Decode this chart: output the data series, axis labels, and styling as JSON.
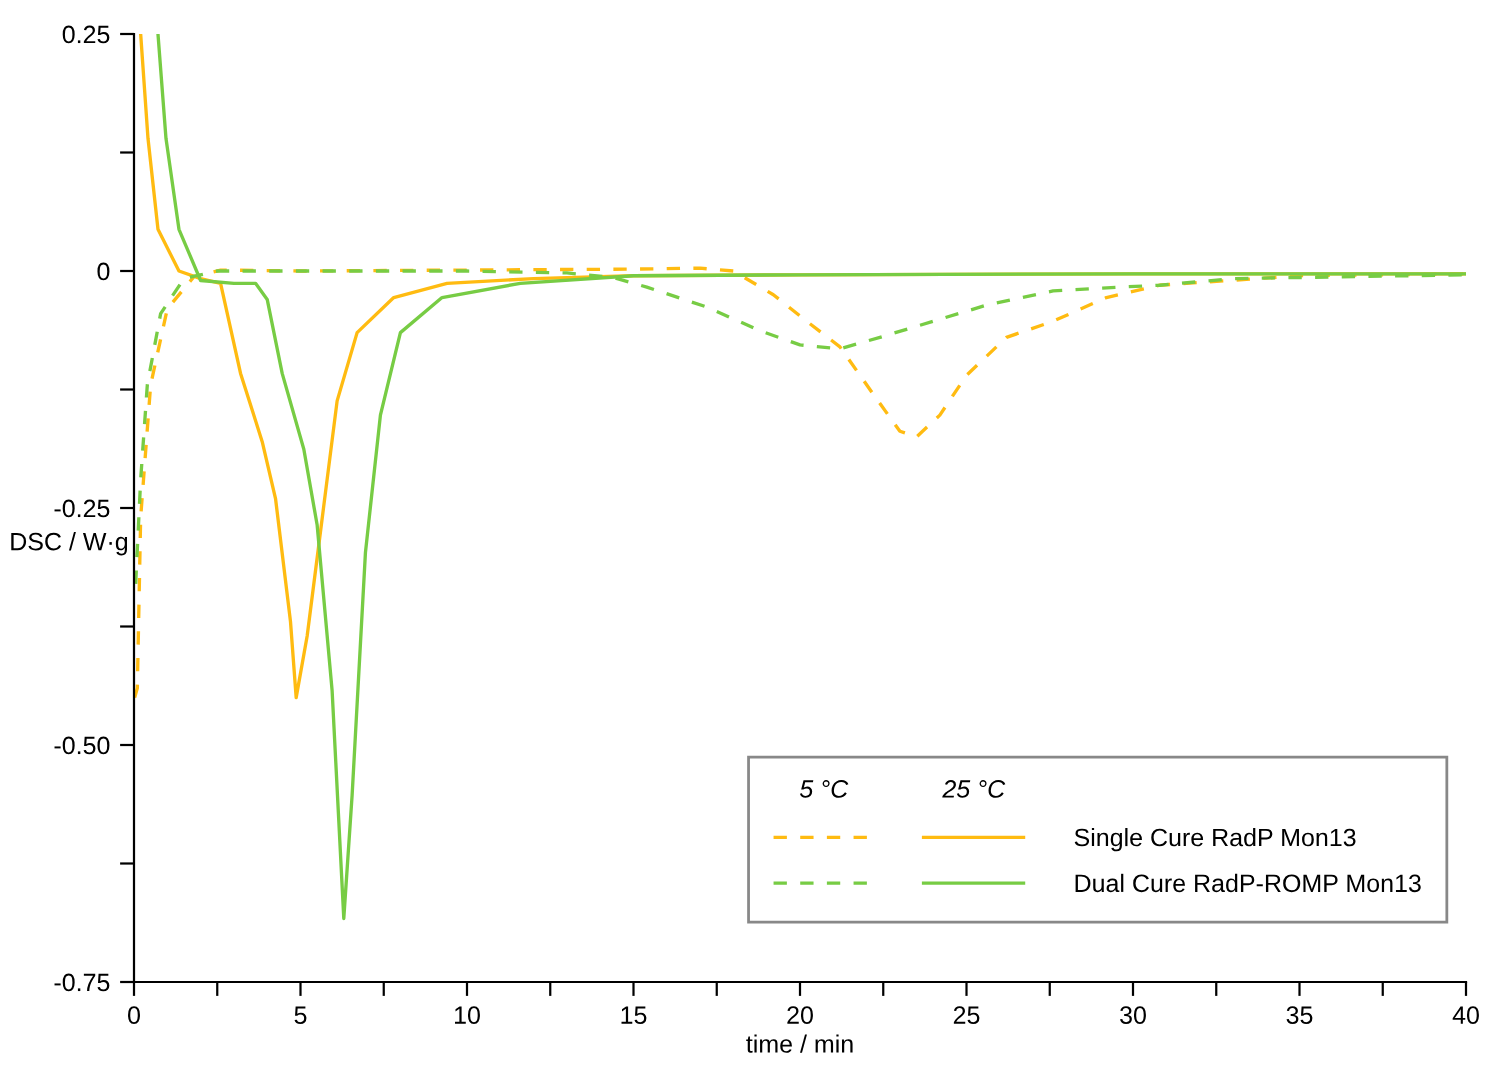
{
  "chart_data": {
    "type": "line",
    "xlabel": "time / min",
    "ylabel": "DSC / W·g",
    "xlim": [
      0,
      40
    ],
    "ylim": [
      -0.75,
      0.25
    ],
    "xticks": [
      0,
      {
        "value": 2.5,
        "label": null
      },
      5,
      {
        "value": 7.5,
        "label": null
      },
      10,
      {
        "value": 12.5,
        "label": null
      },
      15,
      {
        "value": 17.5,
        "label": null
      },
      20,
      {
        "value": 22.5,
        "label": null
      },
      25,
      {
        "value": 27.5,
        "label": null
      },
      30,
      {
        "value": 32.5,
        "label": null
      },
      35,
      {
        "value": 37.5,
        "label": null
      },
      40
    ],
    "yticks": [
      {
        "value": -0.75,
        "label": "-0.75"
      },
      {
        "value": -0.625,
        "label": null
      },
      {
        "value": -0.5,
        "label": "-0.50"
      },
      {
        "value": -0.375,
        "label": null
      },
      {
        "value": -0.25,
        "label": "-0.25"
      },
      {
        "value": -0.125,
        "label": null
      },
      0,
      {
        "value": 0.125,
        "label": null
      },
      0.25
    ],
    "grid": false,
    "legend": "bottom right",
    "marker": "none",
    "annotations": [
      "5 °C",
      "25 °C"
    ],
    "series": [
      {
        "color": "#ffbb11",
        "line_style": "dashed",
        "x": [
          0.02,
          0.1,
          0.2,
          0.5,
          1.0,
          1.8,
          2.6,
          5,
          10,
          15,
          17,
          18,
          19.2,
          20.2,
          21.2,
          22.2,
          23,
          23.5,
          24.2,
          25,
          26.2,
          27.6,
          29.2,
          30.8,
          35,
          40
        ],
        "values": [
          -0.45,
          -0.44,
          -0.26,
          -0.12,
          -0.04,
          -0.006,
          0.001,
          0.0,
          0.001,
          0.002,
          0.003,
          0.0,
          -0.025,
          -0.053,
          -0.08,
          -0.13,
          -0.169,
          -0.175,
          -0.152,
          -0.11,
          -0.07,
          -0.053,
          -0.028,
          -0.015,
          -0.005,
          -0.003
        ]
      },
      {
        "name": "Single Cure RadP Mon13",
        "color": "#ffbb11",
        "line_style": "solid",
        "x": [
          0.2,
          0.42,
          0.72,
          1.35,
          2.0,
          2.6,
          3.2,
          3.85,
          4.25,
          4.7,
          4.87,
          5.2,
          5.6,
          6.1,
          6.7,
          7.8,
          9.4,
          12,
          15,
          20,
          30,
          40
        ],
        "values": [
          0.25,
          0.14,
          0.044,
          0.0,
          -0.008,
          -0.013,
          -0.108,
          -0.18,
          -0.24,
          -0.37,
          -0.45,
          -0.385,
          -0.275,
          -0.137,
          -0.065,
          -0.028,
          -0.013,
          -0.008,
          -0.005,
          -0.004,
          -0.003,
          -0.003
        ]
      },
      {
        "color": "#77cc44",
        "line_style": "dashed",
        "x": [
          0.05,
          0.2,
          0.4,
          0.8,
          1.5,
          2.5,
          5,
          10,
          13,
          14.4,
          15.4,
          17.2,
          18.8,
          20,
          21.2,
          22.4,
          24,
          25.6,
          27.6,
          29.6,
          30.8,
          33,
          40
        ],
        "values": [
          -0.33,
          -0.22,
          -0.12,
          -0.045,
          -0.008,
          0.0,
          0.0,
          0.0,
          -0.002,
          -0.007,
          -0.017,
          -0.038,
          -0.063,
          -0.078,
          -0.082,
          -0.07,
          -0.053,
          -0.036,
          -0.021,
          -0.017,
          -0.015,
          -0.008,
          -0.004
        ]
      },
      {
        "name": "Dual Cure RadP-ROMP Mon13",
        "color": "#77cc44",
        "line_style": "solid",
        "x": [
          0.72,
          0.96,
          1.35,
          2.0,
          3.0,
          3.65,
          4.0,
          4.45,
          5.1,
          5.5,
          5.95,
          6.3,
          6.55,
          6.95,
          7.4,
          8.0,
          9.25,
          11.6,
          15,
          20,
          30,
          40
        ],
        "values": [
          0.25,
          0.14,
          0.044,
          -0.01,
          -0.013,
          -0.013,
          -0.03,
          -0.108,
          -0.188,
          -0.268,
          -0.443,
          -0.683,
          -0.553,
          -0.297,
          -0.152,
          -0.065,
          -0.028,
          -0.013,
          -0.005,
          -0.004,
          -0.003,
          -0.003
        ]
      }
    ]
  }
}
